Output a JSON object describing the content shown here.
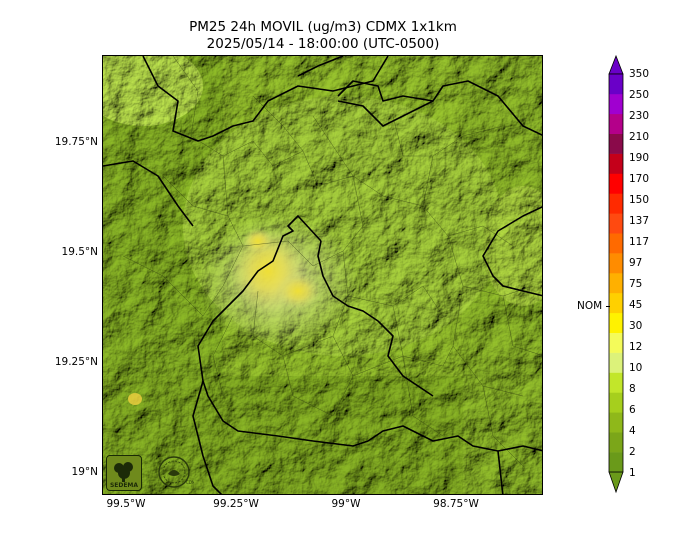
{
  "title": {
    "line1": "PM25 24h MOVIL (ug/m3) CDMX 1x1km",
    "line2": "2025/05/14 - 18:00:00 (UTC-0500)"
  },
  "map": {
    "lat_ticks": [
      "19.75°N",
      "19.5°N",
      "19.25°N",
      "19°N"
    ],
    "lon_ticks": [
      "99.5°W",
      "99.25°W",
      "99°W",
      "98.75°W"
    ],
    "logos": [
      "SEDEMA"
    ]
  },
  "colorbar": {
    "labels": [
      "1",
      "2",
      "4",
      "6",
      "8",
      "10",
      "12",
      "30",
      "45",
      "75",
      "97",
      "117",
      "137",
      "150",
      "170",
      "190",
      "210",
      "230",
      "250",
      "350"
    ],
    "colors": [
      "#6a9a1a",
      "#7ba619",
      "#8fb81a",
      "#a6cf1d",
      "#c2e62a",
      "#dcf27a",
      "#f4fb5a",
      "#fff200",
      "#ffd000",
      "#ffb000",
      "#ff8c00",
      "#ff6a00",
      "#ff4a10",
      "#ff2a00",
      "#ff0000",
      "#c4001a",
      "#8a0a4a",
      "#b4008a",
      "#a000d0",
      "#6a00c8"
    ],
    "nom_label": "NOM",
    "nom_value": "45"
  }
}
